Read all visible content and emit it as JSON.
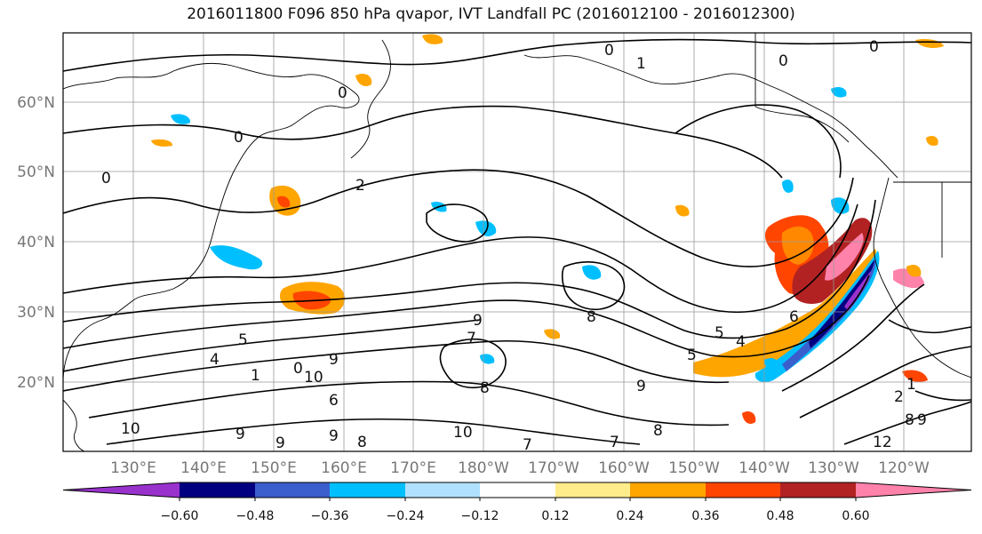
{
  "title": "2016011800 F096 850 hPa qvapor, IVT Landfall PC (2016012100 - 2016012300)",
  "lat_labels": [
    "60°N",
    "50°N",
    "40°N",
    "30°N",
    "20°N"
  ],
  "lon_labels": [
    "130°E",
    "140°E",
    "150°E",
    "160°E",
    "170°E",
    "180°W",
    "170°W",
    "160°W",
    "150°W",
    "140°W",
    "130°W",
    "120°W"
  ],
  "colorbar": {
    "colors": [
      "#9932cc",
      "#000080",
      "#3a5fcd",
      "#00bfff",
      "#b0e2ff",
      "#ffffff",
      "#ffec8b",
      "#ffa500",
      "#ff4500",
      "#b22222",
      "#ff82ab"
    ],
    "tick_labels": [
      "−0.60",
      "−0.48",
      "−0.36",
      "−0.24",
      "−0.12",
      "0.12",
      "0.24",
      "0.36",
      "0.48",
      "0.60"
    ]
  },
  "contour_labels": [
    "0",
    "0",
    "1",
    "0",
    "0",
    "0",
    "2",
    "0",
    "5",
    "4",
    "1",
    "0",
    "9",
    "10",
    "9",
    "7",
    "8",
    "6",
    "8",
    "10",
    "9",
    "8",
    "7",
    "7",
    "8",
    "9",
    "5",
    "4",
    "6",
    "5",
    "1",
    "2",
    "8",
    "9",
    "12",
    "10",
    "9",
    "9"
  ]
}
